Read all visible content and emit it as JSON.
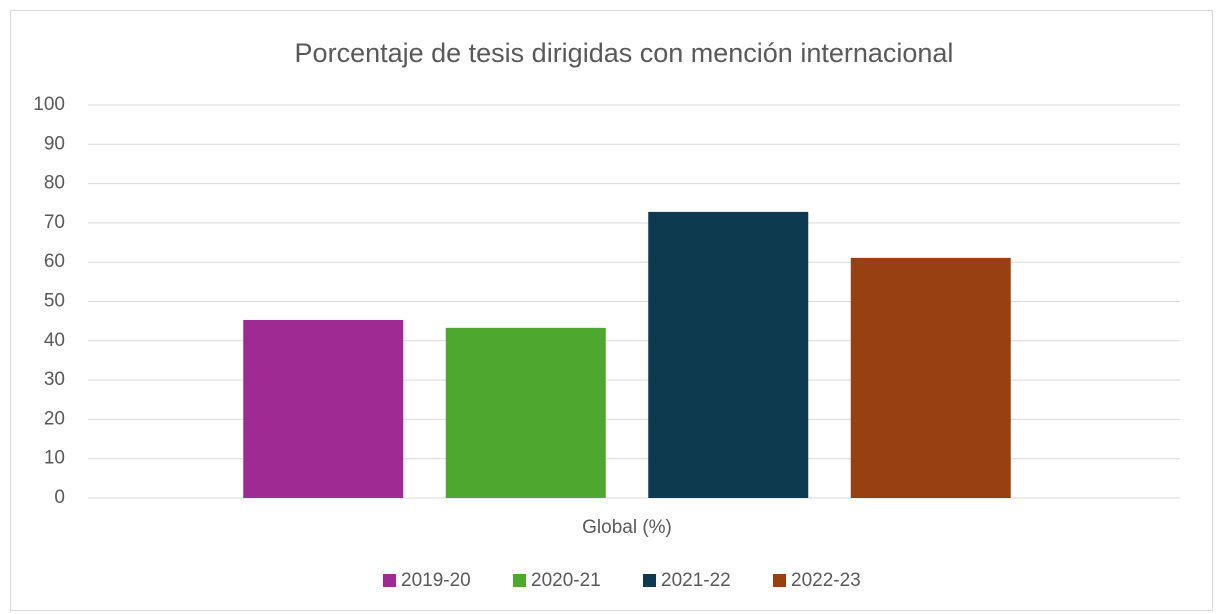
{
  "chart_data": {
    "type": "bar",
    "title": "Porcentaje de tesis dirigidas con mención internacional",
    "categories": [
      "Global (%)"
    ],
    "series": [
      {
        "name": "2019-20",
        "color": "#9e2a94",
        "values": [
          45.3
        ]
      },
      {
        "name": "2020-21",
        "color": "#4ea72e",
        "values": [
          43.3
        ]
      },
      {
        "name": "2021-22",
        "color": "#0e3a50",
        "values": [
          72.8
        ]
      },
      {
        "name": "2022-23",
        "color": "#984012",
        "values": [
          61.1
        ]
      }
    ],
    "ylim": [
      0,
      100
    ],
    "yticks": [
      0,
      10,
      20,
      30,
      40,
      50,
      60,
      70,
      80,
      90,
      100
    ],
    "grid": true,
    "legend": "bottom"
  }
}
